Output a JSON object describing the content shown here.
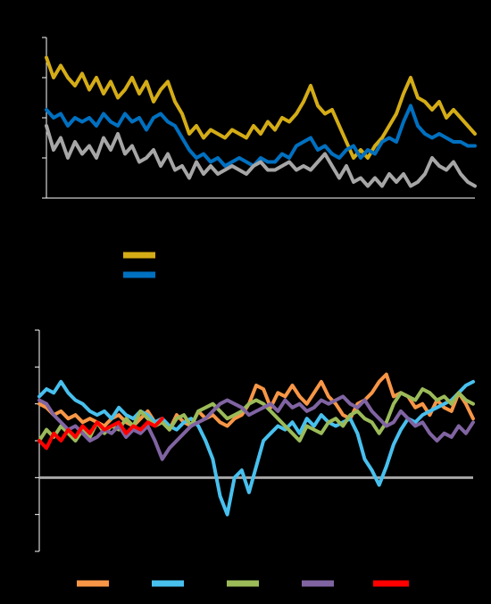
{
  "chart_data": [
    {
      "type": "line",
      "title": "",
      "xlabel": "",
      "ylabel": "",
      "x": [
        0,
        8,
        16,
        24,
        32,
        40,
        48,
        56,
        64,
        72,
        80,
        88,
        96,
        104,
        112,
        120,
        128,
        136,
        144,
        152,
        160,
        168,
        176,
        184,
        192,
        200,
        208,
        216,
        224,
        232,
        240,
        248,
        256,
        264,
        272,
        280,
        288,
        296,
        304,
        312,
        320,
        328,
        336,
        344,
        352,
        360,
        368,
        376,
        384,
        392,
        400,
        408,
        416,
        424,
        432,
        440,
        448,
        456,
        464,
        472,
        480
      ],
      "ylim": [
        0,
        4
      ],
      "yticks": [
        0,
        1,
        2,
        3,
        4
      ],
      "grid": false,
      "legend_position": "bottom",
      "series": [
        {
          "name": "",
          "color": "#D4AC16",
          "values": [
            3.5,
            3.0,
            3.3,
            3.0,
            2.8,
            3.1,
            2.7,
            3.0,
            2.6,
            2.9,
            2.5,
            2.7,
            3.0,
            2.6,
            2.9,
            2.4,
            2.7,
            2.9,
            2.4,
            2.1,
            1.6,
            1.8,
            1.5,
            1.7,
            1.6,
            1.5,
            1.7,
            1.6,
            1.5,
            1.8,
            1.6,
            1.9,
            1.7,
            2.0,
            1.9,
            2.1,
            2.4,
            2.8,
            2.3,
            2.1,
            2.2,
            1.8,
            1.4,
            1.0,
            1.2,
            1.0,
            1.3,
            1.5,
            1.8,
            2.1,
            2.6,
            3.0,
            2.5,
            2.4,
            2.2,
            2.4,
            2.0,
            2.2,
            2.0,
            1.8,
            1.6
          ]
        },
        {
          "name": "",
          "color": "#0070C0",
          "values": [
            2.2,
            2.0,
            2.1,
            1.8,
            2.0,
            1.9,
            2.0,
            1.8,
            2.1,
            1.9,
            1.8,
            2.1,
            1.9,
            2.0,
            1.7,
            2.0,
            2.1,
            1.9,
            1.8,
            1.5,
            1.2,
            1.0,
            1.1,
            0.9,
            1.0,
            0.8,
            0.9,
            1.0,
            0.9,
            0.8,
            1.0,
            0.9,
            0.9,
            1.1,
            1.0,
            1.3,
            1.4,
            1.5,
            1.2,
            1.3,
            1.1,
            1.0,
            1.2,
            1.3,
            1.0,
            1.2,
            1.1,
            1.4,
            1.5,
            1.4,
            1.9,
            2.3,
            1.8,
            1.6,
            1.5,
            1.6,
            1.5,
            1.4,
            1.4,
            1.3,
            1.3
          ]
        },
        {
          "name": "",
          "color": "#A6A6A6",
          "values": [
            1.8,
            1.2,
            1.5,
            1.0,
            1.4,
            1.1,
            1.3,
            1.0,
            1.5,
            1.2,
            1.6,
            1.1,
            1.3,
            0.9,
            1.0,
            1.2,
            0.8,
            1.1,
            0.7,
            0.8,
            0.5,
            0.9,
            0.6,
            0.8,
            0.6,
            0.7,
            0.8,
            0.7,
            0.6,
            0.8,
            0.9,
            0.7,
            0.7,
            0.8,
            0.9,
            0.7,
            0.8,
            0.7,
            0.9,
            1.1,
            0.8,
            0.5,
            0.8,
            0.4,
            0.5,
            0.3,
            0.5,
            0.3,
            0.6,
            0.4,
            0.6,
            0.3,
            0.4,
            0.6,
            1.0,
            0.8,
            0.7,
            0.9,
            0.6,
            0.4,
            0.3
          ]
        }
      ]
    },
    {
      "type": "line",
      "title": "",
      "xlabel": "",
      "ylabel": "",
      "x": [
        0,
        8,
        16,
        24,
        32,
        40,
        48,
        56,
        64,
        72,
        80,
        88,
        96,
        104,
        112,
        120,
        128,
        136,
        144,
        152,
        160,
        168,
        176,
        184,
        192,
        200,
        208,
        216,
        224,
        232,
        240,
        248,
        256,
        264,
        272,
        280,
        288,
        296,
        304,
        312,
        320,
        328,
        336,
        344,
        352,
        360,
        368,
        376,
        384,
        392,
        400,
        408,
        416,
        424,
        432,
        440,
        448,
        456,
        464,
        472,
        480
      ],
      "ylim": [
        -2,
        4
      ],
      "yticks": [
        -2,
        -1,
        0,
        1,
        2,
        3,
        4
      ],
      "zero_line": true,
      "grid": false,
      "legend_position": "bottom",
      "series": [
        {
          "name": "",
          "color": "#F79646",
          "values": [
            2.0,
            1.9,
            1.7,
            1.8,
            1.6,
            1.7,
            1.5,
            1.6,
            1.5,
            1.4,
            1.6,
            1.7,
            1.5,
            1.4,
            1.6,
            1.8,
            1.5,
            1.6,
            1.3,
            1.7,
            1.5,
            1.4,
            1.8,
            1.6,
            1.7,
            1.5,
            1.4,
            1.6,
            1.7,
            2.0,
            2.5,
            2.4,
            1.9,
            2.3,
            2.2,
            2.5,
            2.2,
            2.0,
            2.3,
            2.6,
            2.2,
            2.0,
            1.7,
            1.6,
            2.0,
            2.1,
            2.3,
            2.6,
            2.8,
            2.2,
            2.3,
            2.2,
            1.9,
            2.0,
            1.7,
            2.1,
            1.9,
            1.8,
            2.3,
            2.0,
            1.6
          ]
        },
        {
          "name": "",
          "color": "#48C0EE",
          "values": [
            2.2,
            2.4,
            2.3,
            2.6,
            2.3,
            2.1,
            2.0,
            1.8,
            1.7,
            1.8,
            1.6,
            1.9,
            1.7,
            1.6,
            1.8,
            1.7,
            1.5,
            1.6,
            1.4,
            1.3,
            1.5,
            1.6,
            1.4,
            1.0,
            0.5,
            -0.5,
            -1.0,
            0.0,
            0.2,
            -0.4,
            0.3,
            1.0,
            1.2,
            1.4,
            1.3,
            1.5,
            1.2,
            1.6,
            1.4,
            1.7,
            1.5,
            1.4,
            1.5,
            1.6,
            1.2,
            0.5,
            0.2,
            -0.2,
            0.3,
            0.9,
            1.3,
            1.6,
            1.5,
            1.7,
            1.8,
            1.9,
            2.0,
            2.1,
            2.3,
            2.5,
            2.6
          ]
        },
        {
          "name": "",
          "color": "#9BBB59",
          "values": [
            1.0,
            1.3,
            1.1,
            1.4,
            1.2,
            1.0,
            1.3,
            1.1,
            1.5,
            1.2,
            1.4,
            1.3,
            1.6,
            1.4,
            1.8,
            1.6,
            1.4,
            1.5,
            1.3,
            1.6,
            1.7,
            1.4,
            1.8,
            1.9,
            2.0,
            1.8,
            1.6,
            1.7,
            1.8,
            2.0,
            2.1,
            2.0,
            1.8,
            1.6,
            1.4,
            1.2,
            1.0,
            1.4,
            1.3,
            1.2,
            1.5,
            1.6,
            1.4,
            1.7,
            1.8,
            1.6,
            1.5,
            1.2,
            1.5,
            2.0,
            2.3,
            2.2,
            2.1,
            2.4,
            2.3,
            2.1,
            2.2,
            2.0,
            2.3,
            2.1,
            2.0
          ]
        },
        {
          "name": "",
          "color": "#8064A2",
          "values": [
            2.1,
            2.0,
            1.7,
            1.5,
            1.3,
            1.4,
            1.2,
            1.0,
            1.1,
            1.3,
            1.2,
            1.4,
            1.1,
            1.3,
            1.2,
            1.4,
            1.0,
            0.5,
            0.8,
            1.0,
            1.2,
            1.4,
            1.5,
            1.6,
            1.8,
            2.0,
            2.1,
            2.0,
            1.9,
            1.7,
            1.8,
            1.9,
            2.0,
            1.8,
            2.1,
            1.9,
            2.0,
            1.8,
            1.9,
            2.1,
            2.0,
            2.1,
            2.2,
            2.0,
            1.9,
            2.1,
            1.8,
            1.6,
            1.4,
            1.5,
            1.8,
            1.6,
            1.4,
            1.5,
            1.2,
            1.0,
            1.2,
            1.1,
            1.4,
            1.2,
            1.5
          ]
        },
        {
          "name": "",
          "color": "#FF0000",
          "values": [
            1.0,
            0.8,
            1.2,
            1.0,
            1.3,
            1.1,
            1.4,
            1.2,
            1.5,
            1.3,
            1.4,
            1.5,
            1.2,
            1.4,
            1.3,
            1.5,
            1.4,
            1.6,
            null,
            null,
            null,
            null,
            null,
            null,
            null,
            null,
            null,
            null,
            null,
            null,
            null,
            null,
            null,
            null,
            null,
            null,
            null,
            null,
            null,
            null,
            null,
            null,
            null,
            null,
            null,
            null,
            null,
            null,
            null,
            null,
            null,
            null,
            null,
            null,
            null,
            null,
            null,
            null,
            null,
            null,
            null
          ]
        }
      ]
    }
  ]
}
